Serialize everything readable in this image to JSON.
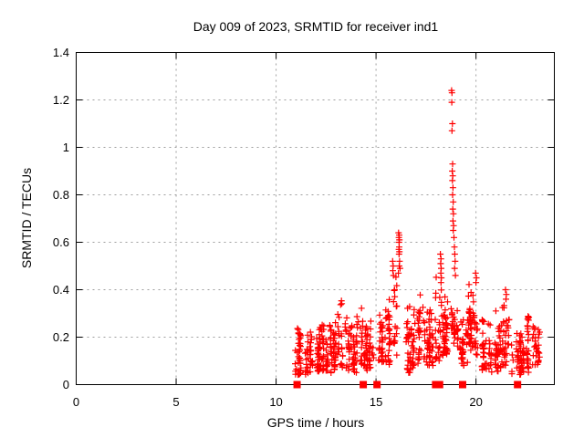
{
  "header": {
    "title": "Day 009 of 2023, SRMTID for receiver ind1"
  },
  "chart_data": {
    "type": "scatter",
    "title": "Day 009 of 2023, SRMTID for receiver ind1",
    "xlabel": "GPS time / hours",
    "ylabel": "SRMTID / TECUs",
    "xlim": [
      0,
      23.92
    ],
    "ylim": [
      0,
      1.4
    ],
    "xticks": {
      "values": [
        0,
        5,
        10,
        15,
        20
      ],
      "labels": [
        "0",
        "5",
        "10",
        "15",
        "20"
      ]
    },
    "yticks": {
      "values": [
        0,
        0.2,
        0.4,
        0.6,
        0.8,
        1.0,
        1.2,
        1.4
      ],
      "labels": [
        "0",
        "0.2",
        "0.4",
        "0.6",
        "0.8",
        "1",
        "1.2",
        "1.4"
      ]
    },
    "grid": "dashed-at-major-ticks",
    "legend": "none",
    "marker": {
      "shape": "plus",
      "size": 7,
      "color": "#ff0000"
    },
    "colors": {
      "data": "#ff0000",
      "axis": "#000000",
      "grid": "#9e9e9e",
      "background": "#ffffff"
    },
    "series_name": "SRMTID",
    "data_x_range": [
      10.95,
      23.25
    ],
    "cluster_envelope_note": "dense plus-marker bands; each entry = [x_start, x_end, point_count, y_min, y_max]",
    "clusters": [
      [
        11.0,
        11.6,
        55,
        0.04,
        0.27
      ],
      [
        11.6,
        12.2,
        55,
        0.05,
        0.3
      ],
      [
        12.2,
        12.8,
        50,
        0.05,
        0.3
      ],
      [
        12.8,
        13.4,
        50,
        0.06,
        0.36
      ],
      [
        13.4,
        14.0,
        48,
        0.05,
        0.33
      ],
      [
        14.0,
        14.5,
        40,
        0.08,
        0.38
      ],
      [
        14.5,
        15.0,
        32,
        0.06,
        0.28
      ],
      [
        15.0,
        15.5,
        36,
        0.08,
        0.33
      ],
      [
        15.5,
        16.05,
        42,
        0.08,
        0.5
      ],
      [
        16.3,
        16.9,
        42,
        0.05,
        0.35
      ],
      [
        16.9,
        17.5,
        42,
        0.08,
        0.4
      ],
      [
        17.5,
        18.0,
        40,
        0.08,
        0.35
      ],
      [
        18.0,
        18.45,
        40,
        0.1,
        0.55
      ],
      [
        18.45,
        18.75,
        28,
        0.12,
        0.45
      ],
      [
        18.75,
        19.1,
        30,
        0.15,
        0.45
      ],
      [
        19.1,
        19.6,
        38,
        0.08,
        0.35
      ],
      [
        19.6,
        20.15,
        48,
        0.12,
        0.48
      ],
      [
        20.15,
        20.7,
        42,
        0.06,
        0.35
      ],
      [
        20.7,
        21.2,
        40,
        0.05,
        0.32
      ],
      [
        21.2,
        21.7,
        36,
        0.08,
        0.4
      ],
      [
        21.7,
        22.3,
        42,
        0.04,
        0.3
      ],
      [
        22.3,
        22.8,
        36,
        0.05,
        0.33
      ],
      [
        22.8,
        23.25,
        30,
        0.08,
        0.32
      ]
    ],
    "spike_points": [
      [
        16.12,
        0.47
      ],
      [
        16.13,
        0.64
      ],
      [
        16.14,
        0.62
      ],
      [
        16.14,
        0.57
      ],
      [
        16.15,
        0.6
      ],
      [
        16.15,
        0.55
      ],
      [
        16.16,
        0.63
      ],
      [
        16.16,
        0.58
      ],
      [
        16.16,
        0.5
      ],
      [
        16.17,
        0.61
      ],
      [
        16.17,
        0.56
      ],
      [
        16.18,
        0.52
      ],
      [
        16.2,
        0.49
      ],
      [
        18.22,
        0.55
      ],
      [
        18.23,
        0.51
      ],
      [
        18.24,
        0.47
      ],
      [
        18.25,
        0.53
      ],
      [
        18.25,
        0.43
      ],
      [
        18.26,
        0.49
      ],
      [
        18.27,
        0.45
      ],
      [
        18.78,
        1.24
      ],
      [
        18.8,
        1.23
      ],
      [
        18.79,
        1.19
      ],
      [
        18.82,
        1.1
      ],
      [
        18.8,
        1.07
      ],
      [
        18.83,
        0.93
      ],
      [
        18.81,
        0.9
      ],
      [
        18.84,
        0.88
      ],
      [
        18.82,
        0.86
      ],
      [
        18.85,
        0.83
      ],
      [
        18.83,
        0.8
      ],
      [
        18.86,
        0.77
      ],
      [
        18.84,
        0.74
      ],
      [
        18.87,
        0.72
      ],
      [
        18.85,
        0.69
      ],
      [
        18.88,
        0.67
      ],
      [
        18.86,
        0.65
      ],
      [
        18.9,
        0.62
      ],
      [
        18.92,
        0.58
      ],
      [
        18.94,
        0.55
      ],
      [
        18.96,
        0.52
      ],
      [
        18.93,
        0.49
      ],
      [
        18.97,
        0.46
      ],
      [
        15.83,
        0.52
      ],
      [
        15.86,
        0.5
      ],
      [
        15.84,
        0.48
      ],
      [
        15.87,
        0.46
      ],
      [
        19.98,
        0.47
      ],
      [
        20.02,
        0.45
      ],
      [
        20.0,
        0.43
      ],
      [
        21.48,
        0.4
      ],
      [
        21.52,
        0.38
      ],
      [
        21.5,
        0.36
      ]
    ],
    "baseline_squares": {
      "y": 0,
      "x": [
        11.05,
        14.36,
        15.05,
        17.98,
        18.18,
        19.33,
        22.08
      ]
    }
  }
}
